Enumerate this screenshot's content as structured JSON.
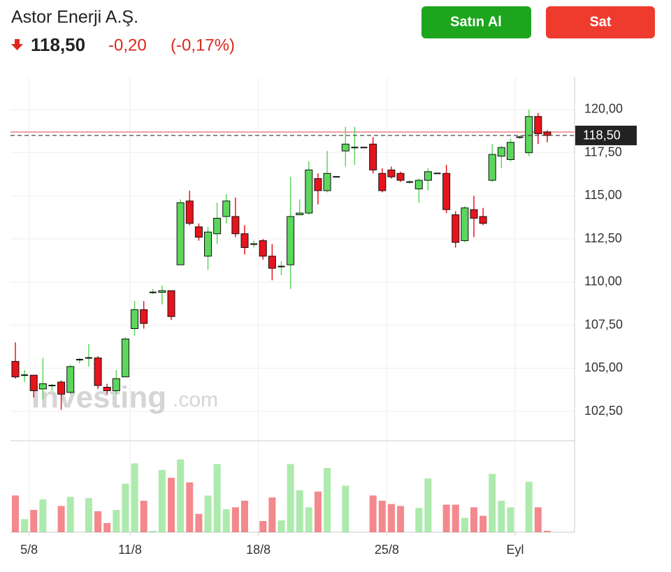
{
  "header": {
    "title": "Astor Enerji A.Ş.",
    "price": "118,50",
    "change": "-0,20",
    "change_pct": "(-0,17%)",
    "buy": "Satın Al",
    "sell": "Sat"
  },
  "chart_data": {
    "type": "candlestick",
    "watermark": [
      "Investing",
      ".com"
    ],
    "categories": [
      null,
      "5/8",
      null,
      null,
      null,
      null,
      null,
      null,
      null,
      null,
      null,
      null,
      "11/8",
      null,
      null,
      null,
      null,
      null,
      null,
      null,
      null,
      null,
      null,
      null,
      null,
      null,
      "18/8",
      null,
      null,
      null,
      null,
      null,
      null,
      null,
      null,
      null,
      null,
      null,
      null,
      null,
      "25/8",
      null,
      null,
      null,
      null,
      null,
      null,
      null,
      null,
      null,
      null,
      null,
      null,
      null,
      "Eyl",
      null,
      null,
      null,
      null
    ],
    "open": [
      105.4,
      104.6,
      104.6,
      103.8,
      104.0,
      104.2,
      103.6,
      105.5,
      105.6,
      105.6,
      103.9,
      103.7,
      104.5,
      107.3,
      108.4,
      109.4,
      109.4,
      109.5,
      111.0,
      114.7,
      113.2,
      111.5,
      112.8,
      113.8,
      113.8,
      112.8,
      112.2,
      112.4,
      111.5,
      110.9,
      111.0,
      113.9,
      114.0,
      116.0,
      115.3,
      116.1,
      117.6,
      117.8,
      117.8,
      118.0,
      116.3,
      116.5,
      116.3,
      115.8,
      115.4,
      115.9,
      116.3,
      116.3,
      113.9,
      112.4,
      114.2,
      113.8,
      115.9,
      117.3,
      117.1,
      118.4,
      117.5,
      119.6,
      118.7
    ],
    "high": [
      106.5,
      104.9,
      104.6,
      105.6,
      104.1,
      104.3,
      105.2,
      105.6,
      106.4,
      105.7,
      104.1,
      104.9,
      106.8,
      108.9,
      108.9,
      109.6,
      109.8,
      109.5,
      114.8,
      115.3,
      113.4,
      113.2,
      114.6,
      115.1,
      114.9,
      113.3,
      112.4,
      112.5,
      112.2,
      111.2,
      116.1,
      114.8,
      117.0,
      116.3,
      117.6,
      116.1,
      119.0,
      119.0,
      117.8,
      118.4,
      116.6,
      116.7,
      116.4,
      115.9,
      116.0,
      116.6,
      116.3,
      116.8,
      114.1,
      114.4,
      115.0,
      114.3,
      118.0,
      117.9,
      118.3,
      118.5,
      120.0,
      119.8,
      118.8
    ],
    "low": [
      104.4,
      104.2,
      103.3,
      103.2,
      103.7,
      102.6,
      103.5,
      105.3,
      105.1,
      103.8,
      103.5,
      103.5,
      104.5,
      106.9,
      107.3,
      109.3,
      108.7,
      107.8,
      111.0,
      113.3,
      112.4,
      110.7,
      112.2,
      113.4,
      112.6,
      111.6,
      112.0,
      111.3,
      110.1,
      110.4,
      109.6,
      113.9,
      113.9,
      114.5,
      115.2,
      116.1,
      116.7,
      116.8,
      117.8,
      116.3,
      115.2,
      116.0,
      115.8,
      115.7,
      114.6,
      115.3,
      116.3,
      114.0,
      112.0,
      112.3,
      112.6,
      113.3,
      115.8,
      116.6,
      117.0,
      118.3,
      117.3,
      118.0,
      118.1
    ],
    "close": [
      104.5,
      104.6,
      103.7,
      104.1,
      104.0,
      103.5,
      105.1,
      105.5,
      105.6,
      104.0,
      103.7,
      104.4,
      106.7,
      108.4,
      107.6,
      109.4,
      109.5,
      108.0,
      114.6,
      113.4,
      112.6,
      112.9,
      113.7,
      114.7,
      112.8,
      112.0,
      112.2,
      111.5,
      110.8,
      110.9,
      113.8,
      114.0,
      116.5,
      115.3,
      116.3,
      116.1,
      118.0,
      117.8,
      117.8,
      116.5,
      115.3,
      116.1,
      115.9,
      115.8,
      115.9,
      116.4,
      116.3,
      114.2,
      112.3,
      114.3,
      113.7,
      113.4,
      117.4,
      117.8,
      118.1,
      118.4,
      119.6,
      118.6,
      118.5
    ],
    "volume": [
      56,
      20,
      34,
      50,
      0,
      40,
      54,
      0,
      52,
      32,
      14,
      34,
      74,
      105,
      48,
      2,
      95,
      83,
      111,
      76,
      28,
      56,
      104,
      35,
      38,
      48,
      0,
      17,
      53,
      18,
      104,
      64,
      38,
      62,
      98,
      0,
      71,
      0,
      0,
      56,
      48,
      43,
      40,
      0,
      37,
      82,
      0,
      42,
      42,
      22,
      38,
      25,
      89,
      48,
      38,
      0,
      77,
      38,
      2
    ],
    "volume_lim": [
      0,
      130
    ],
    "up_color": "#5cd65c",
    "down_color": "#e8141c",
    "ylim": [
      100.8,
      121.9
    ],
    "yticks": [
      {
        "value": 102.5,
        "label": "102,50"
      },
      {
        "value": 105,
        "label": "105,00"
      },
      {
        "value": 107.5,
        "label": "107,50"
      },
      {
        "value": 110,
        "label": "110,00"
      },
      {
        "value": 112.5,
        "label": "112,50"
      },
      {
        "value": 115,
        "label": "115,00"
      },
      {
        "value": 117.5,
        "label": "117,50"
      },
      {
        "value": 120,
        "label": "120,00"
      }
    ],
    "last_price": {
      "value": 118.5,
      "label": "118,50"
    },
    "prev_close": 118.7,
    "grid": true
  }
}
